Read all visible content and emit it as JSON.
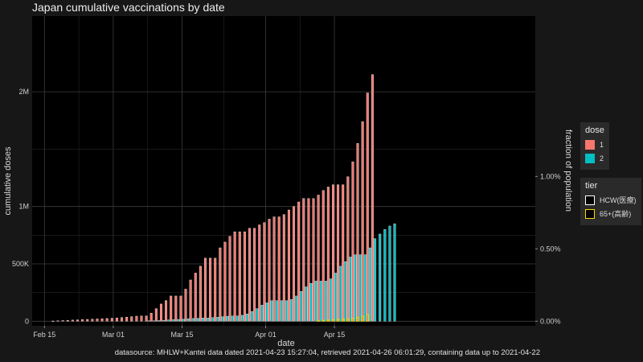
{
  "chart_data": {
    "type": "bar",
    "title": "Japan cumulative vaccinations by date",
    "xlabel": "date",
    "ylabel": "cumulative doses",
    "y2label": "fraction of population",
    "source": "datasource: MHLW+Kantei data dated 2021-04-23 15:27:04, retrieved 2021-04-26 06:01:29, containing data up to 2021-04-22",
    "x_start_date": "2021-02-13",
    "x_ticks": [
      {
        "date": "2021-02-15",
        "label": "Feb 15"
      },
      {
        "date": "2021-03-01",
        "label": "Mar 01"
      },
      {
        "date": "2021-03-15",
        "label": "Mar 15"
      },
      {
        "date": "2021-04-01",
        "label": "Apr 01"
      },
      {
        "date": "2021-04-15",
        "label": "Apr 15"
      }
    ],
    "y_ticks": [
      {
        "value": 0,
        "label": "0"
      },
      {
        "value": 500000,
        "label": "500K"
      },
      {
        "value": 1000000,
        "label": "1M"
      },
      {
        "value": 2000000,
        "label": "2M"
      }
    ],
    "y2_ticks": [
      {
        "value": 0,
        "label": "0.00%"
      },
      {
        "value": 0.005,
        "label": "0.50%"
      },
      {
        "value": 0.01,
        "label": "1.00%"
      }
    ],
    "population": 126200000,
    "ylim": [
      -40000,
      2660000
    ],
    "grid": true,
    "series": [
      {
        "name": "1",
        "legend": "dose",
        "color": "#f8766d",
        "start_date": "2021-02-17",
        "values": [
          2000,
          4000,
          6000,
          8000,
          10000,
          12000,
          14000,
          16000,
          18000,
          20000,
          22000,
          24000,
          26000,
          28000,
          32000,
          36000,
          40000,
          44000,
          46000,
          46000,
          70000,
          110000,
          150000,
          180000,
          220000,
          220000,
          220000,
          280000,
          360000,
          420000,
          480000,
          550000,
          550000,
          550000,
          640000,
          690000,
          740000,
          780000,
          780000,
          780000,
          810000,
          810000,
          840000,
          860000,
          890000,
          910000,
          910000,
          930000,
          970000,
          1000000,
          1040000,
          1070000,
          1070000,
          1070000,
          1100000,
          1140000,
          1170000,
          1190000,
          1190000,
          1190000,
          1260000,
          1390000,
          1550000,
          1740000,
          1990000,
          2150000
        ]
      },
      {
        "name": "2",
        "legend": "dose",
        "color": "#00bfc4",
        "start_date": "2021-03-08",
        "values": [
          4000,
          4000,
          6000,
          8000,
          12000,
          14000,
          16000,
          18000,
          22000,
          24000,
          26000,
          28000,
          28000,
          32000,
          36000,
          40000,
          44000,
          46000,
          46000,
          52000,
          64000,
          86000,
          110000,
          140000,
          160000,
          180000,
          180000,
          180000,
          180000,
          190000,
          220000,
          260000,
          300000,
          330000,
          350000,
          350000,
          350000,
          370000,
          420000,
          480000,
          520000,
          560000,
          580000,
          580000,
          580000,
          640000,
          720000,
          760000,
          800000,
          830000,
          850000
        ]
      },
      {
        "name": "HCW(医療)",
        "legend": "tier",
        "color": "#ffffff",
        "start_date": "2021-02-17",
        "values": [
          2000,
          4000,
          6000,
          8000,
          10000,
          12000,
          14000,
          16000,
          18000,
          20000,
          22000,
          24000,
          26000,
          28000,
          32000,
          36000,
          40000,
          44000,
          46000,
          46000,
          70000,
          110000,
          150000,
          180000,
          220000,
          220000,
          220000,
          280000,
          360000,
          420000,
          480000,
          550000,
          550000,
          550000,
          640000,
          690000,
          740000,
          780000,
          780000,
          780000,
          810000,
          810000,
          840000,
          860000,
          890000,
          910000,
          910000,
          930000,
          970000,
          1000000,
          1040000,
          1070000,
          1070000,
          1070000,
          1100000,
          1140000,
          1170000,
          1190000,
          1190000,
          1190000,
          1260000,
          1390000,
          1550000,
          1740000,
          1990000,
          2150000
        ]
      },
      {
        "name": "65+(高齢)",
        "legend": "tier",
        "color": "#ffd700",
        "start_date": "2021-04-12",
        "values": [
          4000,
          8000,
          10000,
          14000,
          16000,
          20000,
          22000,
          26000,
          34000,
          44000,
          58000
        ]
      }
    ]
  }
}
